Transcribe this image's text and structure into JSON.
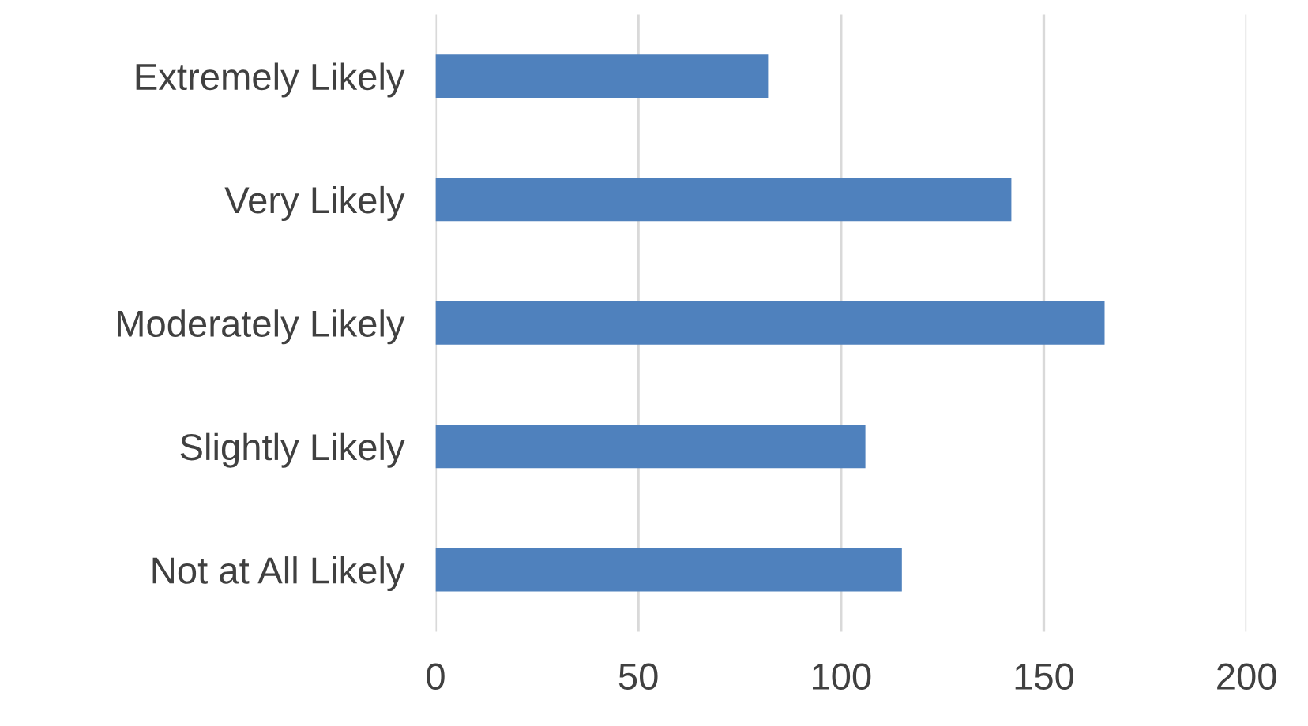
{
  "chart_data": {
    "type": "bar",
    "orientation": "horizontal",
    "categories": [
      "Extremely Likely",
      "Very Likely",
      "Moderately Likely",
      "Slightly Likely",
      "Not at All Likely"
    ],
    "values": [
      82,
      142,
      165,
      106,
      115
    ],
    "color": "#4f81bd",
    "xlim": [
      0,
      200
    ],
    "xticks": [
      0,
      50,
      100,
      150,
      200
    ],
    "grid": "x",
    "legend": false
  }
}
